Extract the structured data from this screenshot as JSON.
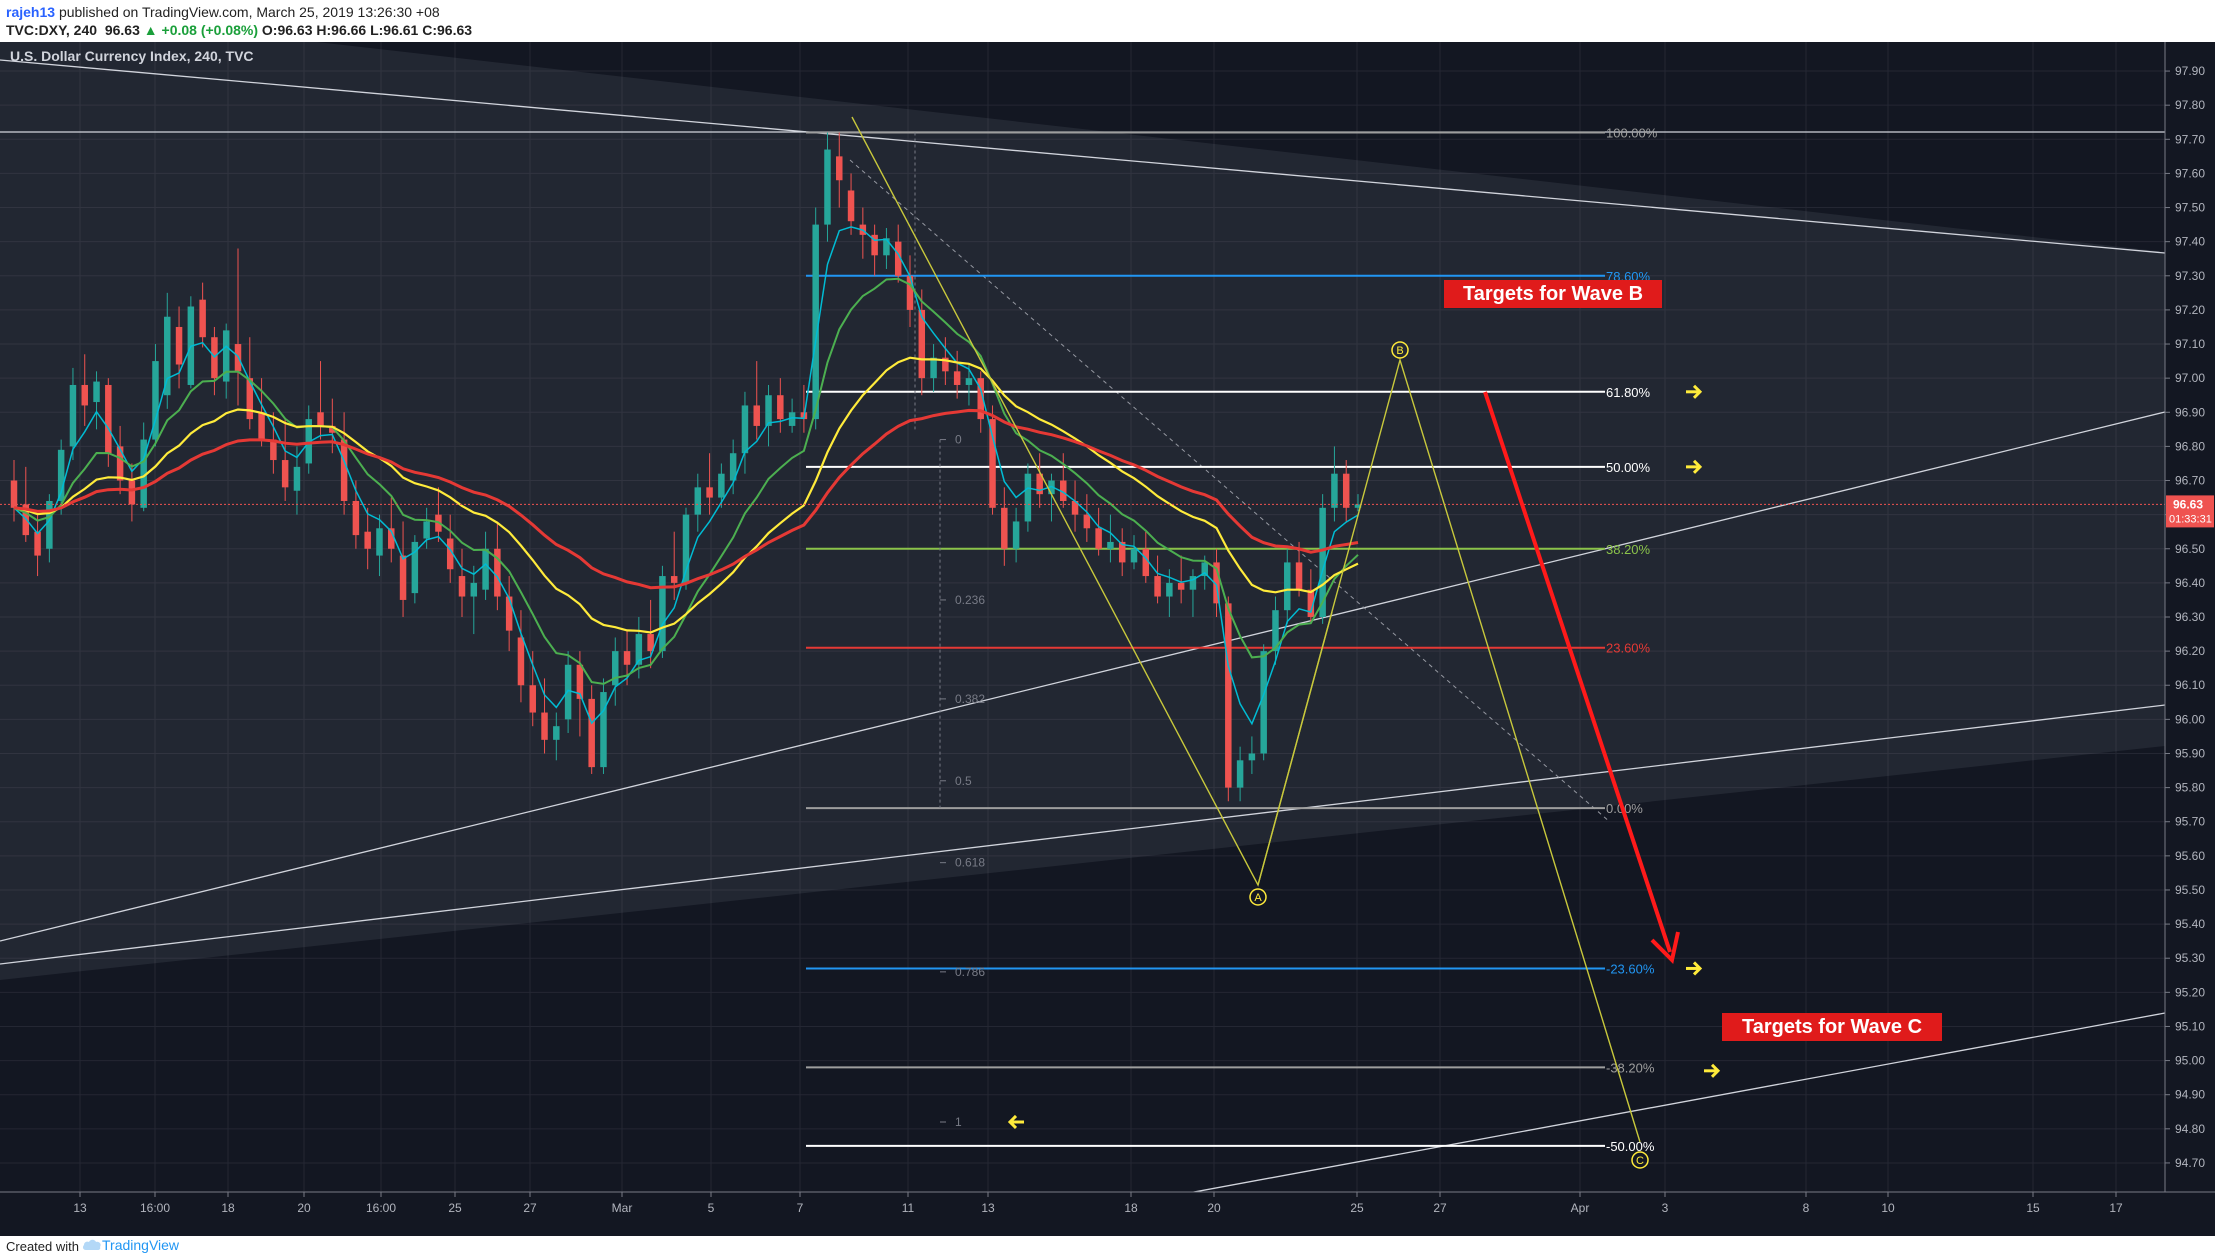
{
  "header": {
    "author": "rajeh13",
    "published": "published on TradingView.com, March 25, 2019 13:26:30 +08",
    "symbol_line": "TVC:DXY, 240",
    "last": "96.63",
    "change": "▲ +0.08 (+0.08%)",
    "ohlc": "O:96.63 H:96.66 L:96.61 C:96.63"
  },
  "chart_title": "U.S. Dollar Currency Index, 240, TVC",
  "footer": {
    "created_with": "Created with",
    "brand": "TradingView"
  },
  "colors": {
    "background": "#131722",
    "up": "#26a69a",
    "down": "#ef5350",
    "ema_fast": "#00bcd4",
    "ema_mid": "#4caf50",
    "ema_slow": "#ffeb3b",
    "ema_long": "#e53935",
    "price_tag": "#ef5350"
  },
  "chart_data": {
    "type": "candlestick",
    "title": "U.S. Dollar Currency Index, 240, TVC",
    "ylim": [
      94.65,
      97.95
    ],
    "y_ticks": [
      "97.90",
      "97.80",
      "97.70",
      "97.60",
      "97.50",
      "97.40",
      "97.30",
      "97.20",
      "97.10",
      "97.00",
      "96.90",
      "96.80",
      "96.70",
      "96.60",
      "96.50",
      "96.40",
      "96.30",
      "96.20",
      "96.10",
      "96.00",
      "95.90",
      "95.80",
      "95.70",
      "95.60",
      "95.50",
      "95.40",
      "95.30",
      "95.20",
      "95.10",
      "95.00",
      "94.90",
      "94.80",
      "94.70"
    ],
    "x_ticks": [
      "13",
      "16:00",
      "18",
      "20",
      "16:00",
      "25",
      "27",
      "Mar",
      "5",
      "7",
      "11",
      "13",
      "18",
      "20",
      "25",
      "27",
      "Apr",
      "3",
      "8",
      "10",
      "15",
      "17"
    ],
    "last_price": "96.63",
    "countdown": "01:33:31",
    "candles": [
      [
        96.7,
        96.76,
        96.58,
        96.62
      ],
      [
        96.63,
        96.74,
        96.52,
        96.54
      ],
      [
        96.55,
        96.6,
        96.42,
        96.48
      ],
      [
        96.5,
        96.66,
        96.46,
        96.64
      ],
      [
        96.64,
        96.82,
        96.6,
        96.79
      ],
      [
        96.8,
        97.03,
        96.76,
        96.98
      ],
      [
        96.98,
        97.07,
        96.86,
        96.92
      ],
      [
        96.93,
        97.02,
        96.85,
        96.99
      ],
      [
        96.98,
        97.0,
        96.74,
        96.78
      ],
      [
        96.8,
        96.86,
        96.66,
        96.7
      ],
      [
        96.7,
        96.75,
        96.58,
        96.63
      ],
      [
        96.62,
        96.87,
        96.61,
        96.82
      ],
      [
        96.82,
        97.1,
        96.8,
        97.05
      ],
      [
        96.95,
        97.25,
        96.91,
        97.18
      ],
      [
        97.15,
        97.21,
        96.97,
        97.04
      ],
      [
        96.98,
        97.24,
        96.97,
        97.21
      ],
      [
        97.23,
        97.28,
        97.09,
        97.12
      ],
      [
        97.12,
        97.15,
        96.95,
        97.0
      ],
      [
        96.99,
        97.16,
        96.94,
        97.14
      ],
      [
        97.1,
        97.38,
        96.92,
        97.02
      ],
      [
        97.0,
        97.12,
        96.85,
        96.88
      ],
      [
        96.9,
        97.0,
        96.8,
        96.82
      ],
      [
        96.82,
        96.9,
        96.72,
        96.76
      ],
      [
        96.76,
        96.88,
        96.64,
        96.68
      ],
      [
        96.67,
        96.8,
        96.6,
        96.74
      ],
      [
        96.75,
        96.92,
        96.72,
        96.88
      ],
      [
        96.9,
        97.05,
        96.82,
        96.86
      ],
      [
        96.86,
        96.94,
        96.78,
        96.84
      ],
      [
        96.82,
        96.9,
        96.6,
        96.64
      ],
      [
        96.64,
        96.7,
        96.5,
        96.54
      ],
      [
        96.55,
        96.62,
        96.44,
        96.5
      ],
      [
        96.48,
        96.6,
        96.42,
        96.56
      ],
      [
        96.56,
        96.65,
        96.46,
        96.5
      ],
      [
        96.48,
        96.58,
        96.3,
        96.35
      ],
      [
        96.37,
        96.54,
        96.34,
        96.52
      ],
      [
        96.53,
        96.62,
        96.5,
        96.58
      ],
      [
        96.6,
        96.68,
        96.52,
        96.55
      ],
      [
        96.53,
        96.6,
        96.4,
        96.44
      ],
      [
        96.42,
        96.5,
        96.3,
        96.36
      ],
      [
        96.36,
        96.45,
        96.25,
        96.4
      ],
      [
        96.38,
        96.55,
        96.35,
        96.5
      ],
      [
        96.5,
        96.58,
        96.32,
        96.36
      ],
      [
        96.36,
        96.42,
        96.2,
        96.26
      ],
      [
        96.24,
        96.32,
        96.05,
        96.1
      ],
      [
        96.1,
        96.2,
        95.98,
        96.02
      ],
      [
        96.02,
        96.12,
        95.9,
        95.94
      ],
      [
        95.94,
        96.02,
        95.88,
        95.98
      ],
      [
        96.0,
        96.2,
        95.96,
        96.16
      ],
      [
        96.16,
        96.2,
        95.95,
        96.06
      ],
      [
        96.06,
        96.1,
        95.84,
        95.86
      ],
      [
        95.86,
        96.12,
        95.84,
        96.08
      ],
      [
        96.1,
        96.24,
        96.04,
        96.2
      ],
      [
        96.2,
        96.26,
        96.1,
        96.16
      ],
      [
        96.16,
        96.3,
        96.12,
        96.25
      ],
      [
        96.25,
        96.35,
        96.15,
        96.2
      ],
      [
        96.2,
        96.45,
        96.18,
        96.42
      ],
      [
        96.42,
        96.55,
        96.35,
        96.4
      ],
      [
        96.4,
        96.62,
        96.38,
        96.6
      ],
      [
        96.6,
        96.72,
        96.55,
        96.68
      ],
      [
        96.68,
        96.78,
        96.6,
        96.65
      ],
      [
        96.65,
        96.75,
        96.62,
        96.72
      ],
      [
        96.7,
        96.82,
        96.66,
        96.78
      ],
      [
        96.78,
        96.96,
        96.72,
        96.92
      ],
      [
        96.92,
        97.05,
        96.82,
        96.86
      ],
      [
        96.86,
        96.98,
        96.8,
        96.95
      ],
      [
        96.95,
        97.0,
        96.84,
        96.88
      ],
      [
        96.86,
        96.94,
        96.84,
        96.9
      ],
      [
        96.9,
        96.98,
        96.84,
        96.88
      ],
      [
        96.88,
        97.5,
        96.85,
        97.45
      ],
      [
        97.45,
        97.72,
        97.4,
        97.67
      ],
      [
        97.65,
        97.72,
        97.5,
        97.58
      ],
      [
        97.55,
        97.6,
        97.42,
        97.46
      ],
      [
        97.45,
        97.5,
        97.35,
        97.42
      ],
      [
        97.42,
        97.45,
        97.3,
        97.36
      ],
      [
        97.36,
        97.44,
        97.32,
        97.41
      ],
      [
        97.4,
        97.45,
        97.28,
        97.3
      ],
      [
        97.3,
        97.36,
        97.15,
        97.2
      ],
      [
        97.2,
        97.26,
        96.95,
        97.0
      ],
      [
        97.0,
        97.1,
        96.96,
        97.06
      ],
      [
        97.06,
        97.12,
        96.98,
        97.02
      ],
      [
        97.02,
        97.08,
        96.94,
        96.98
      ],
      [
        96.98,
        97.04,
        96.92,
        97.0
      ],
      [
        97.0,
        97.02,
        96.84,
        96.88
      ],
      [
        96.88,
        96.92,
        96.6,
        96.62
      ],
      [
        96.62,
        96.68,
        96.45,
        96.5
      ],
      [
        96.5,
        96.62,
        96.46,
        96.58
      ],
      [
        96.58,
        96.75,
        96.55,
        96.72
      ],
      [
        96.72,
        96.78,
        96.62,
        96.66
      ],
      [
        96.66,
        96.72,
        96.58,
        96.7
      ],
      [
        96.7,
        96.78,
        96.62,
        96.64
      ],
      [
        96.64,
        96.7,
        96.55,
        96.6
      ],
      [
        96.6,
        96.66,
        96.52,
        96.56
      ],
      [
        96.56,
        96.62,
        96.48,
        96.5
      ],
      [
        96.5,
        96.6,
        96.46,
        96.52
      ],
      [
        96.52,
        96.56,
        96.42,
        96.46
      ],
      [
        96.46,
        96.54,
        96.44,
        96.5
      ],
      [
        96.5,
        96.55,
        96.4,
        96.42
      ],
      [
        96.42,
        96.48,
        96.34,
        96.36
      ],
      [
        96.36,
        96.44,
        96.3,
        96.4
      ],
      [
        96.4,
        96.48,
        96.34,
        96.38
      ],
      [
        96.38,
        96.44,
        96.3,
        96.42
      ],
      [
        96.42,
        96.48,
        96.38,
        96.46
      ],
      [
        96.46,
        96.5,
        96.3,
        96.34
      ],
      [
        96.34,
        96.36,
        95.76,
        95.8
      ],
      [
        95.8,
        95.92,
        95.76,
        95.88
      ],
      [
        95.88,
        95.95,
        95.84,
        95.9
      ],
      [
        95.9,
        96.22,
        95.88,
        96.2
      ],
      [
        96.2,
        96.36,
        96.16,
        96.32
      ],
      [
        96.32,
        96.5,
        96.28,
        96.46
      ],
      [
        96.46,
        96.52,
        96.36,
        96.38
      ],
      [
        96.38,
        96.44,
        96.28,
        96.3
      ],
      [
        96.3,
        96.66,
        96.28,
        96.62
      ],
      [
        96.62,
        96.8,
        96.58,
        96.72
      ],
      [
        96.72,
        96.76,
        96.58,
        96.62
      ],
      [
        96.62,
        96.66,
        96.61,
        96.63
      ]
    ],
    "overlays": {
      "fib_retracement_main": [
        {
          "label": "100.00%",
          "price": 97.72
        },
        {
          "label": "78.60%",
          "price": 97.3
        },
        {
          "label": "61.80%",
          "price": 96.96
        },
        {
          "label": "50.00%",
          "price": 96.74
        },
        {
          "label": "38.20%",
          "price": 96.5
        },
        {
          "label": "23.60%",
          "price": 96.21
        },
        {
          "label": "0.00%",
          "price": 95.74
        },
        {
          "label": "-23.60%",
          "price": 95.27
        },
        {
          "label": "-38.20%",
          "price": 94.98
        },
        {
          "label": "-50.00%",
          "price": 94.75
        }
      ],
      "fib_extension_small": [
        {
          "label": "0",
          "price": 96.82
        },
        {
          "label": "0.236",
          "price": 96.35
        },
        {
          "label": "0.382",
          "price": 96.06
        },
        {
          "label": "0.5",
          "price": 95.82
        },
        {
          "label": "0.618",
          "price": 95.58
        },
        {
          "label": "0.786",
          "price": 95.26
        },
        {
          "label": "1",
          "price": 94.82
        }
      ],
      "wave_labels": [
        "A",
        "B",
        "C"
      ],
      "annotations": [
        "Targets for Wave B",
        "Targets for Wave C"
      ]
    }
  }
}
